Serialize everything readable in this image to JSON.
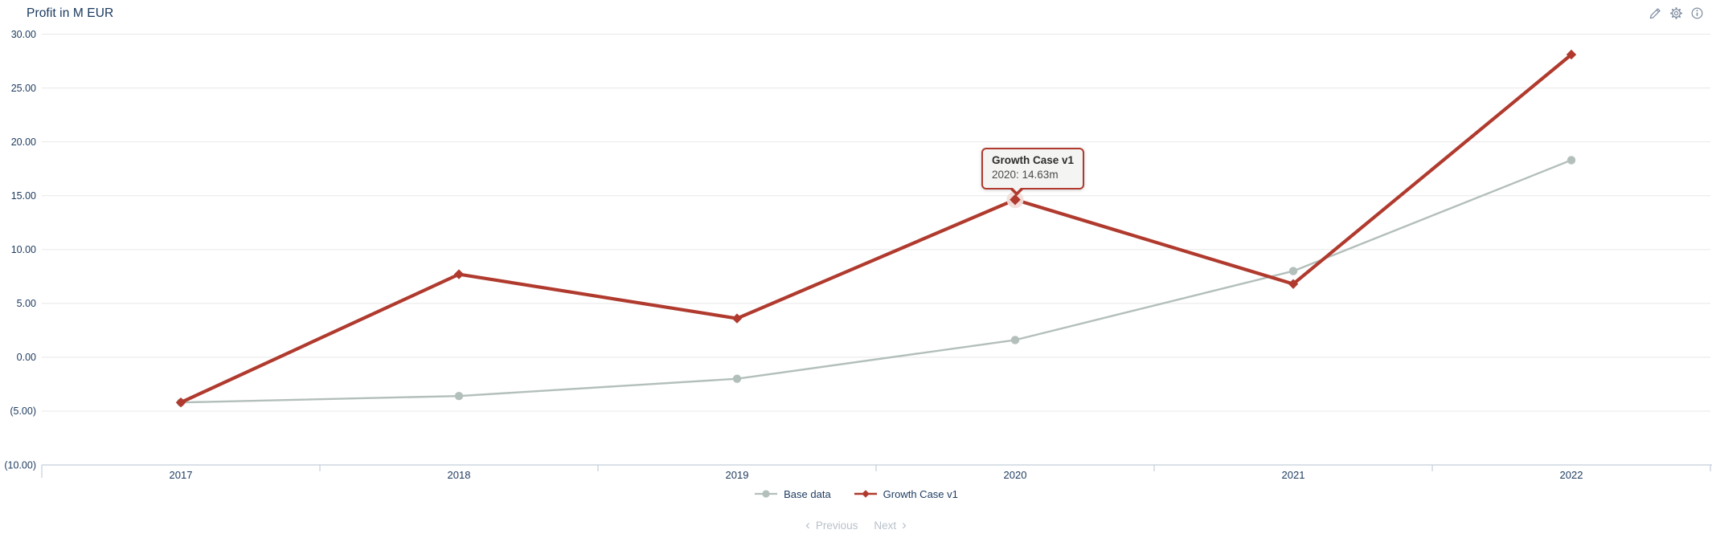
{
  "chart_data": {
    "type": "line",
    "title": "Profit in M EUR",
    "categories": [
      "2017",
      "2018",
      "2019",
      "2020",
      "2021",
      "2022"
    ],
    "series": [
      {
        "name": "Base data",
        "color": "#b3bfba",
        "marker": "circle",
        "values": [
          -4.2,
          -3.6,
          -2.0,
          1.6,
          8.0,
          18.3
        ]
      },
      {
        "name": "Growth Case v1",
        "color": "#b03a2e",
        "marker": "diamond",
        "values": [
          -4.2,
          7.7,
          3.6,
          14.63,
          6.8,
          28.1
        ]
      }
    ],
    "ylim": [
      -10,
      30
    ],
    "y_tick_step": 5,
    "y_tick_labels": [
      "30.00",
      "25.00",
      "20.00",
      "15.00",
      "10.00",
      "5.00",
      "0.00",
      "(5.00)",
      "(10.00)"
    ],
    "grid": "horizontal",
    "legend_position": "bottom-center",
    "highlight": {
      "series": "Growth Case v1",
      "category": "2020",
      "value": 14.63
    }
  },
  "tooltip": {
    "title": "Growth Case v1",
    "text": "2020: 14.63m"
  },
  "toolbar": {
    "icons": [
      "edit-icon",
      "settings-icon",
      "info-icon"
    ]
  },
  "pagination": {
    "previous_label": "Previous",
    "next_label": "Next",
    "prev_chevron": "‹",
    "next_chevron": "›"
  },
  "colors": {
    "title_text": "#17365d",
    "axis_text": "#1d3a5f",
    "gridline": "#e8e8e8",
    "axis_line": "#c4cfda",
    "icon": "#7e8da0",
    "pagination_text": "#b9c0ca",
    "tooltip_bg": "#f4f4f2",
    "highlight_halo": "#f2dedb"
  }
}
